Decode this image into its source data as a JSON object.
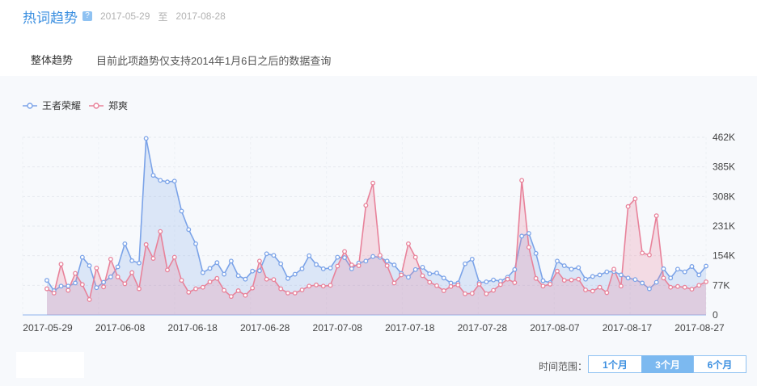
{
  "header": {
    "title": "热词趋势",
    "help": "?",
    "start_date": "2017-05-29",
    "to": "至",
    "end_date": "2017-08-28"
  },
  "tabs": {
    "overall": "整体趋势",
    "note": "目前此项趋势仅支持2014年1月6日之后的数据查询"
  },
  "range": {
    "label": "时间范围：",
    "options": [
      "1个月",
      "3个月",
      "6个月"
    ],
    "selected": "3个月"
  },
  "colors": {
    "series1": "#7ba3e8",
    "series2": "#e8829a",
    "accent": "#3b8fe0"
  },
  "chart_data": {
    "type": "area",
    "title": "",
    "xlabel": "",
    "ylabel": "",
    "ylim": [
      0,
      462
    ],
    "yticks": [
      "0",
      "77K",
      "154K",
      "231K",
      "308K",
      "385K",
      "462K"
    ],
    "ytick_values": [
      0,
      77,
      154,
      231,
      308,
      385,
      462
    ],
    "xticks": [
      "2017-05-29",
      "2017-06-08",
      "2017-06-18",
      "2017-06-28",
      "2017-07-08",
      "2017-07-18",
      "2017-07-28",
      "2017-08-07",
      "2017-08-17",
      "2017-08-27"
    ],
    "legend_position": "top-left",
    "grid": true,
    "series": [
      {
        "name": "王者荣耀",
        "values": [
          90,
          63,
          75,
          75,
          83,
          150,
          128,
          71,
          85,
          99,
          125,
          185,
          141,
          135,
          459,
          363,
          350,
          346,
          348,
          270,
          222,
          185,
          110,
          121,
          136,
          106,
          140,
          102,
          93,
          114,
          115,
          159,
          155,
          133,
          95,
          106,
          120,
          154,
          131,
          120,
          122,
          150,
          149,
          120,
          135,
          140,
          152,
          150,
          140,
          130,
          108,
          98,
          118,
          124,
          107,
          109,
          96,
          83,
          83,
          133,
          145,
          84,
          86,
          91,
          88,
          98,
          118,
          205,
          212,
          160,
          89,
          84,
          140,
          128,
          119,
          123,
          93,
          100,
          104,
          112,
          113,
          104,
          96,
          92,
          83,
          68,
          85,
          120,
          96,
          119,
          112,
          126,
          104,
          127
        ]
      },
      {
        "name": "郑爽",
        "values": [
          68,
          57,
          132,
          64,
          108,
          79,
          40,
          122,
          73,
          145,
          99,
          81,
          110,
          68,
          183,
          147,
          217,
          117,
          150,
          90,
          59,
          68,
          72,
          86,
          95,
          64,
          48,
          63,
          51,
          70,
          140,
          93,
          92,
          68,
          57,
          57,
          65,
          75,
          78,
          75,
          77,
          127,
          165,
          130,
          128,
          285,
          343,
          155,
          128,
          83,
          104,
          185,
          150,
          102,
          85,
          76,
          63,
          74,
          78,
          55,
          56,
          80,
          55,
          64,
          79,
          93,
          84,
          350,
          176,
          95,
          75,
          80,
          114,
          90,
          91,
          93,
          65,
          62,
          72,
          58,
          119,
          75,
          282,
          302,
          161,
          156,
          258,
          96,
          72,
          74,
          72,
          67,
          77,
          86
        ]
      }
    ]
  }
}
